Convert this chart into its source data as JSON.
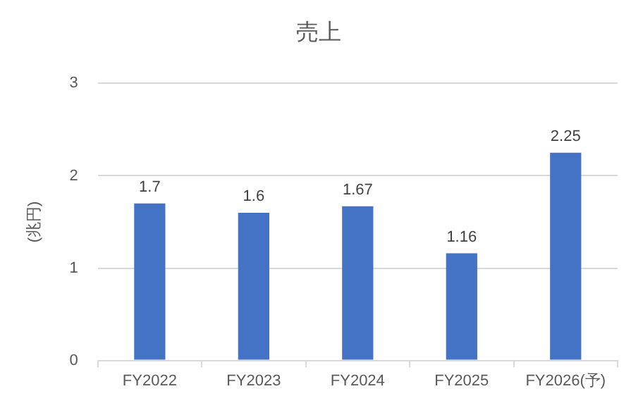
{
  "chart_data": {
    "type": "bar",
    "title": "売上",
    "ylabel": "(兆円)",
    "categories": [
      "FY2022",
      "FY2023",
      "FY2024",
      "FY2025",
      "FY2026(予)"
    ],
    "values": [
      1.7,
      1.6,
      1.67,
      1.16,
      2.25
    ],
    "color": "#4472c4",
    "ylim": [
      0,
      3
    ],
    "yticks": [
      0,
      1,
      2,
      3
    ],
    "grid": "y",
    "data_labels": true,
    "legend": false
  }
}
